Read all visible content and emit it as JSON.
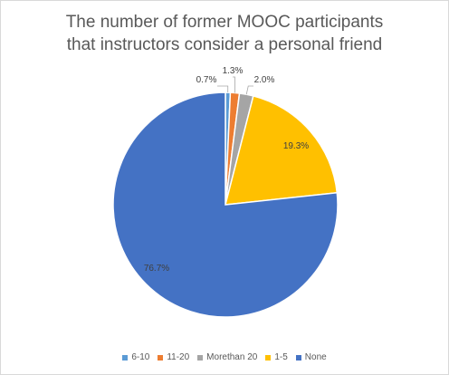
{
  "chart_data": {
    "type": "pie",
    "title_lines": [
      "The number of former MOOC participants",
      "that instructors consider a personal friend"
    ],
    "slices": [
      {
        "label": "6-10",
        "value": 0.7,
        "display": "0.7%",
        "color": "#5b9bd5"
      },
      {
        "label": "11-20",
        "value": 1.3,
        "display": "1.3%",
        "color": "#ed7d31"
      },
      {
        "label": "Morethan 20",
        "value": 2.0,
        "display": "2.0%",
        "color": "#a5a5a5"
      },
      {
        "label": "1-5",
        "value": 19.3,
        "display": "19.3%",
        "color": "#ffc000"
      },
      {
        "label": "None",
        "value": 76.7,
        "display": "76.7%",
        "color": "#4472c4"
      }
    ],
    "legend_position": "bottom",
    "start_angle": "12 o'clock, clockwise"
  }
}
